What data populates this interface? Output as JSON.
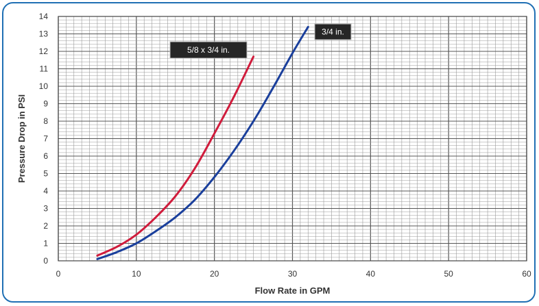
{
  "chart_data": {
    "type": "line",
    "xlabel": "Flow Rate in GPM",
    "ylabel": "Pressure Drop in PSI",
    "xlim": [
      0,
      60
    ],
    "ylim": [
      0,
      14
    ],
    "x_ticks": [
      0,
      10,
      20,
      30,
      40,
      50,
      60
    ],
    "y_ticks": [
      0,
      1,
      2,
      3,
      4,
      5,
      6,
      7,
      8,
      9,
      10,
      11,
      12,
      13,
      14
    ],
    "grid": true,
    "series": [
      {
        "name": "5/8 x 3/4 in.",
        "color": "#d01c3c",
        "x": [
          5,
          7.5,
          10,
          12.5,
          15,
          17.5,
          20,
          22.5,
          25
        ],
        "y": [
          0.3,
          0.8,
          1.5,
          2.5,
          3.7,
          5.3,
          7.3,
          9.4,
          11.7
        ]
      },
      {
        "name": "3/4 in.",
        "color": "#1a3f9c",
        "x": [
          5,
          7.5,
          10,
          12.5,
          15,
          17.5,
          20,
          22.5,
          25,
          27.5,
          30,
          32
        ],
        "y": [
          0.1,
          0.5,
          1.0,
          1.7,
          2.5,
          3.5,
          4.8,
          6.3,
          8.0,
          9.9,
          11.9,
          13.4
        ]
      }
    ]
  }
}
